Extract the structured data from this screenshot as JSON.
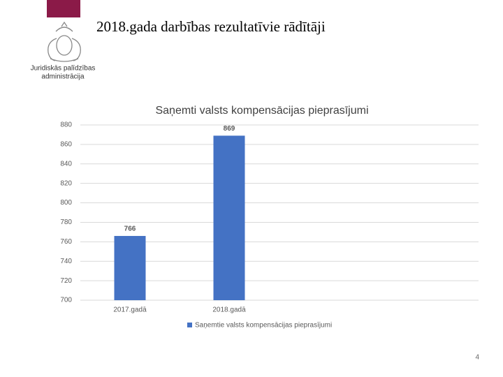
{
  "slide": {
    "title": "2018.gada darbības rezultatīvie rādītāji",
    "logo_text": [
      "Juridiskās palīdzības",
      "administrācija"
    ],
    "page_number": 4
  },
  "chart_data": {
    "type": "bar",
    "title": "Saņemti valsts kompensācijas pieprasījumi",
    "categories": [
      "2017.gadā",
      "2018.gadā"
    ],
    "series": [
      {
        "name": "Saņemtie valsts kompensācijas pieprasījumi",
        "color": "#4472c4",
        "values": [
          766,
          869
        ]
      }
    ],
    "ylim": [
      700,
      880
    ],
    "yticks": [
      700,
      720,
      740,
      760,
      780,
      800,
      820,
      840,
      860,
      880
    ],
    "grid": true,
    "legend": "bottom"
  }
}
